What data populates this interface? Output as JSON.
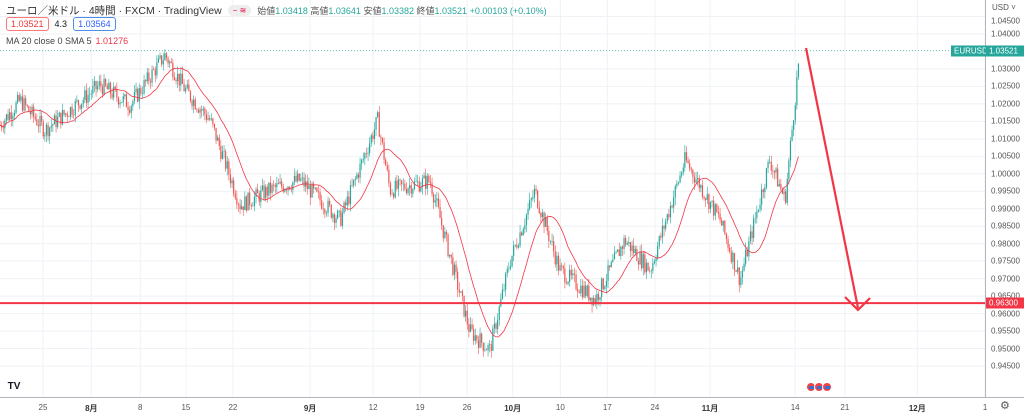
{
  "header": {
    "title": "ユーロ／米ドル · 4時間 · FXCM · TradingView",
    "pill": "− ≋",
    "ohlc": [
      {
        "k": "始値",
        "v": "1.03418"
      },
      {
        "k": "高値",
        "v": "1.03641"
      },
      {
        "k": "安値",
        "v": "1.03382"
      },
      {
        "k": "終値",
        "v": "1.03521"
      }
    ],
    "change": "+0.00103 (+0.10%)",
    "bid": "1.03521",
    "spread": "4.3",
    "ask": "1.03564",
    "indicator": "MA 20 close 0 SMA 5",
    "indicator_value": "1.01276"
  },
  "axis": {
    "currency": "USD ˅",
    "symbol_tag": "EURUSD",
    "last_price": "1.03521",
    "line_price": "0.96300",
    "line_price_value": 0.963,
    "last_value": 1.03521
  },
  "colors": {
    "up": "#26a69a",
    "down": "#ef5350",
    "ma": "#f23645",
    "line": "#f23645",
    "arrow": "#f23645"
  },
  "chart_data": {
    "type": "candlestick",
    "ylim": [
      0.943,
      1.0465
    ],
    "yticks": [
      "1.04500",
      "1.04000",
      "1.03000",
      "1.02500",
      "1.02000",
      "1.01500",
      "1.01000",
      "1.00500",
      "1.00000",
      "0.99500",
      "0.99000",
      "0.98500",
      "0.98000",
      "0.97500",
      "0.97000",
      "0.96500",
      "0.96000",
      "0.95500",
      "0.95000",
      "0.94500"
    ],
    "xticks": [
      {
        "t": "25",
        "d": 0
      },
      {
        "t": "8月",
        "d": 7.2,
        "b": 1
      },
      {
        "t": "8",
        "d": 14.5
      },
      {
        "t": "15",
        "d": 21.3
      },
      {
        "t": "22",
        "d": 28.3
      },
      {
        "t": "9月",
        "d": 39.8,
        "b": 1
      },
      {
        "t": "12",
        "d": 49.2
      },
      {
        "t": "19",
        "d": 56.2
      },
      {
        "t": "26",
        "d": 63.2
      },
      {
        "t": "10月",
        "d": 70.0,
        "b": 1
      },
      {
        "t": "10",
        "d": 77.1
      },
      {
        "t": "17",
        "d": 84.1
      },
      {
        "t": "24",
        "d": 91.2
      },
      {
        "t": "11月",
        "d": 99.4,
        "b": 1
      },
      {
        "t": "14",
        "d": 112.1
      },
      {
        "t": "21",
        "d": 119.5
      },
      {
        "t": "12月",
        "d": 130.3,
        "b": 1
      },
      {
        "t": "1",
        "d": 140.4
      }
    ],
    "price_path": [
      [
        -6.4,
        1.014
      ],
      [
        -3.4,
        1.021
      ],
      [
        0.3,
        1.0125
      ],
      [
        8.5,
        1.0254
      ],
      [
        13,
        1.0197
      ],
      [
        18.2,
        1.034
      ],
      [
        21.2,
        1.024
      ],
      [
        24.9,
        1.0154
      ],
      [
        29.4,
        0.991
      ],
      [
        33.8,
        0.9954
      ],
      [
        38.3,
        0.9982
      ],
      [
        44.3,
        0.9868
      ],
      [
        49.9,
        1.0154
      ],
      [
        51.7,
        0.9954
      ],
      [
        57.7,
        0.998
      ],
      [
        63.6,
        0.955
      ],
      [
        66.6,
        0.9496
      ],
      [
        69.6,
        0.975
      ],
      [
        73.3,
        0.995
      ],
      [
        77,
        0.9725
      ],
      [
        82.3,
        0.964
      ],
      [
        86.7,
        0.981
      ],
      [
        90.5,
        0.9725
      ],
      [
        95.7,
        1.004
      ],
      [
        100.9,
        0.9868
      ],
      [
        103.9,
        0.9697
      ],
      [
        108.3,
        1.004
      ],
      [
        110.6,
        0.9925
      ],
      [
        112.8,
        1.0354
      ]
    ],
    "ma_period": 20
  }
}
